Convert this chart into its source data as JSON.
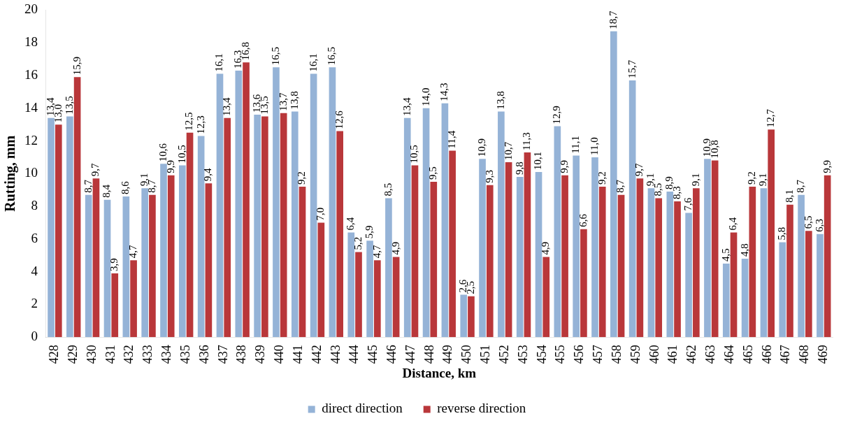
{
  "chart_data": {
    "type": "bar",
    "xlabel": "Distance, km",
    "ylabel": "Rutting, mm",
    "categories": [
      "428",
      "429",
      "430",
      "431",
      "432",
      "433",
      "434",
      "435",
      "436",
      "437",
      "438",
      "439",
      "440",
      "441",
      "442",
      "443",
      "444",
      "445",
      "446",
      "447",
      "448",
      "449",
      "450",
      "451",
      "452",
      "453",
      "454",
      "455",
      "456",
      "457",
      "458",
      "459",
      "460",
      "461",
      "462",
      "463",
      "464",
      "465",
      "466",
      "467",
      "468",
      "469"
    ],
    "series": [
      {
        "name": "direct direction",
        "color": "#95b3d7",
        "values": [
          13.4,
          13.5,
          8.7,
          8.4,
          8.6,
          9.1,
          10.6,
          10.5,
          12.3,
          16.1,
          16.3,
          13.6,
          16.5,
          13.8,
          16.1,
          16.5,
          6.4,
          5.9,
          8.5,
          13.4,
          14.0,
          14.3,
          2.6,
          10.9,
          13.8,
          9.8,
          10.1,
          12.9,
          11.1,
          11.0,
          18.7,
          15.7,
          9.1,
          8.9,
          7.6,
          10.9,
          4.5,
          4.8,
          9.1,
          5.8,
          8.7,
          6.3
        ],
        "value_labels": [
          "13,4",
          "13,5",
          "8,7",
          "8,4",
          "8,6",
          "9,1",
          "10,6",
          "10,5",
          "12,3",
          "16,1",
          "16,3",
          "13,6",
          "16,5",
          "13,8",
          "16,1",
          "16,5",
          "6,4",
          "5,9",
          "8,5",
          "13,4",
          "14,0",
          "14,3",
          "2,6",
          "10,9",
          "13,8",
          "9,8",
          "10,1",
          "12,9",
          "11,1",
          "11,0",
          "18,7",
          "15,7",
          "9,1",
          "8,9",
          "7,6",
          "10,9",
          "4,5",
          "4,8",
          "9,1",
          "5,8",
          "8,7",
          "6,3"
        ]
      },
      {
        "name": "reverse direction",
        "color": "#b9373a",
        "values": [
          13.0,
          15.9,
          9.7,
          3.9,
          4.7,
          8.7,
          9.9,
          12.5,
          9.4,
          13.4,
          16.8,
          13.5,
          13.7,
          9.2,
          7.0,
          12.6,
          5.2,
          4.7,
          4.9,
          10.5,
          9.5,
          11.4,
          2.5,
          9.3,
          10.7,
          11.3,
          4.9,
          9.9,
          6.6,
          9.2,
          8.7,
          9.7,
          8.5,
          8.3,
          9.1,
          10.8,
          6.4,
          9.2,
          12.7,
          8.1,
          6.5,
          9.9
        ],
        "value_labels": [
          "13,0",
          "15,9",
          "9,7",
          "3,9",
          "4,7",
          "8,7",
          "9,9",
          "12,5",
          "9,4",
          "13,4",
          "16,8",
          "13,5",
          "13,7",
          "9,2",
          "7,0",
          "12,6",
          "5,2",
          "4,7",
          "4,9",
          "10,5",
          "9,5",
          "11,4",
          "2,5",
          "9,3",
          "10,7",
          "11,3",
          "4,9",
          "9,9",
          "6,6",
          "9,2",
          "8,7",
          "9,7",
          "8,5",
          "8,3",
          "9,1",
          "10,8",
          "6,4",
          "9,2",
          "12,7",
          "8,1",
          "6,5",
          "9,9"
        ]
      }
    ],
    "ylim": [
      0,
      20
    ],
    "yticks": [
      0,
      2,
      4,
      6,
      8,
      10,
      12,
      14,
      16,
      18,
      20
    ],
    "grid": false,
    "legend": "bottom"
  }
}
